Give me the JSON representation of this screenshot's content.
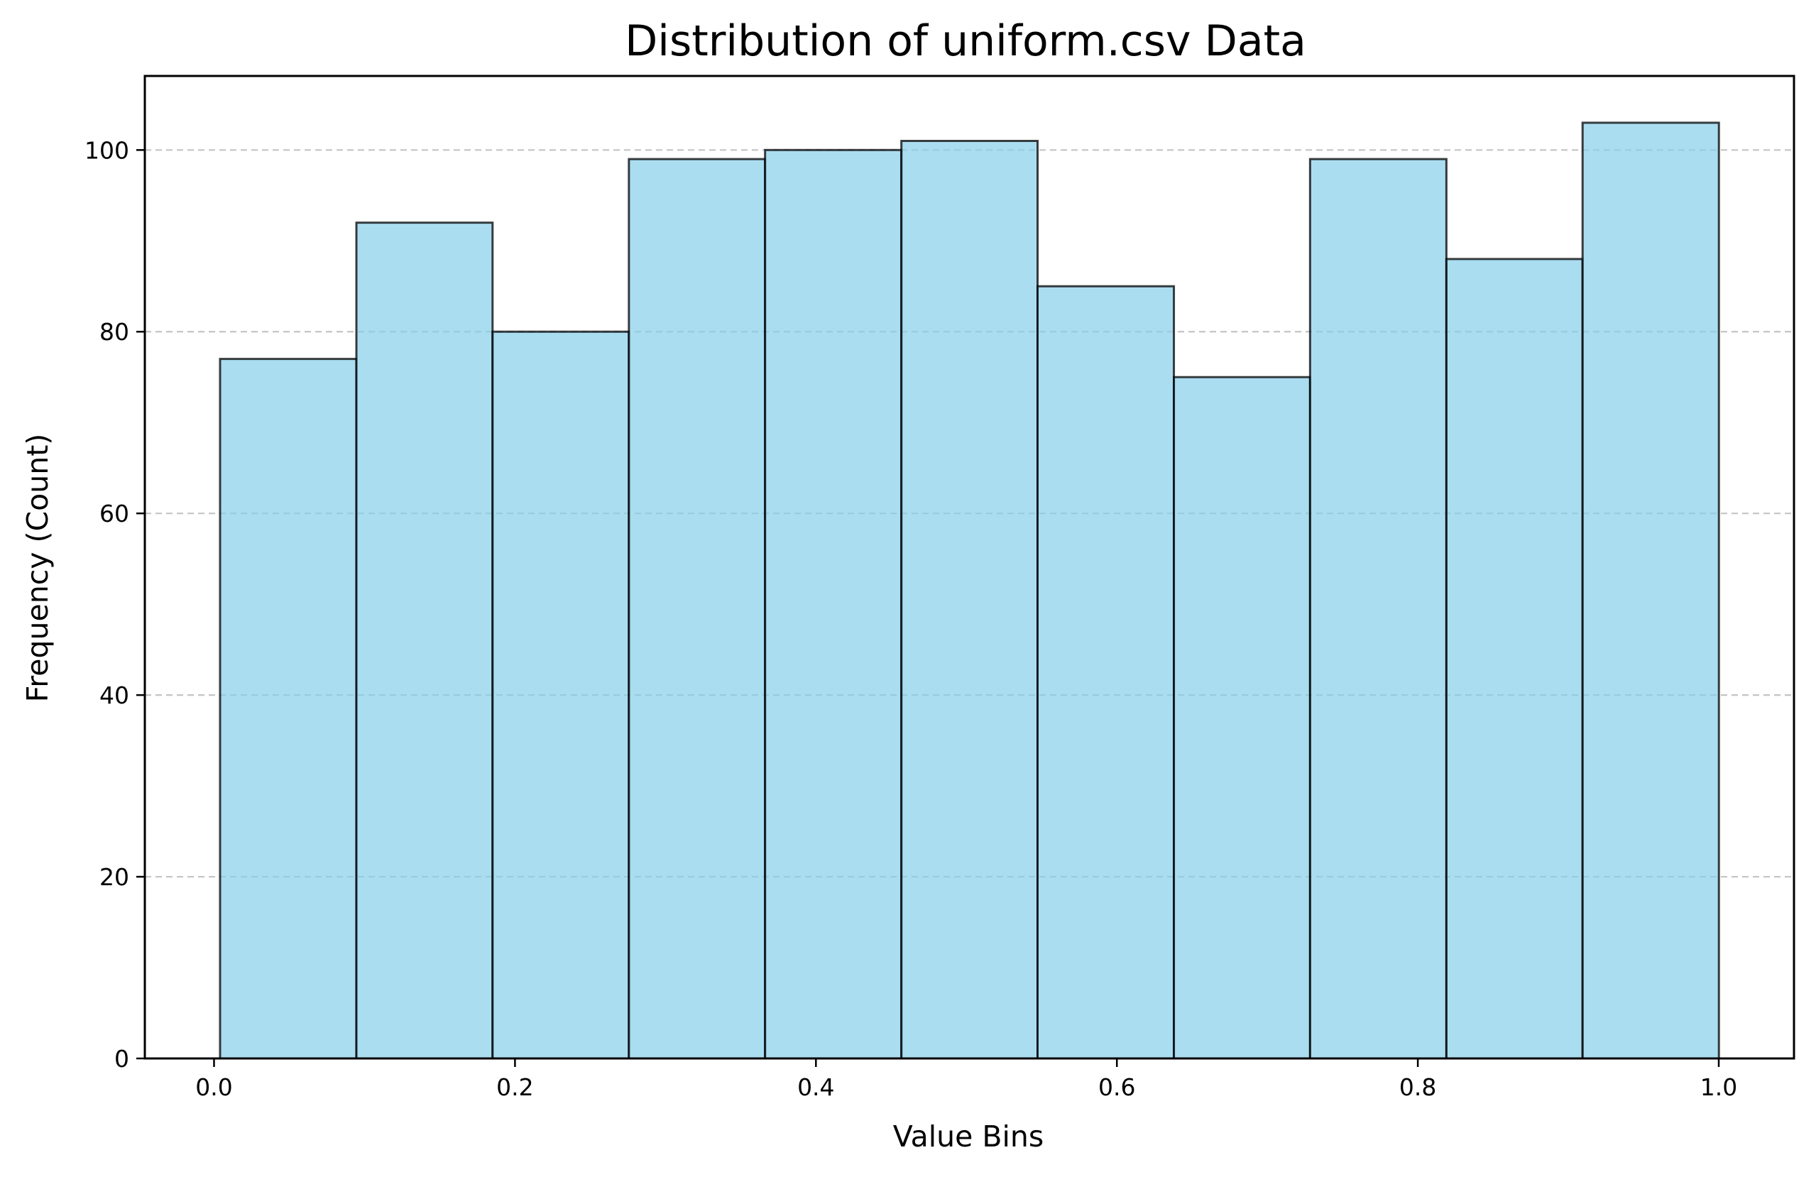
{
  "chart_data": {
    "type": "bar",
    "title": "Distribution of uniform.csv Data",
    "xlabel": "Value Bins",
    "ylabel": "Frequency (Count)",
    "bin_edges": [
      0.004,
      0.0946,
      0.1851,
      0.2757,
      0.3662,
      0.4568,
      0.5473,
      0.6379,
      0.7284,
      0.819,
      0.9095,
      1.0001
    ],
    "values": [
      77,
      92,
      80,
      99,
      100,
      101,
      85,
      75,
      99,
      88,
      103
    ],
    "xlim": [
      -0.046,
      1.05
    ],
    "ylim": [
      0,
      108.15
    ],
    "xticks": [
      0.0,
      0.2,
      0.4,
      0.6,
      0.8,
      1.0
    ],
    "xtick_labels": [
      "0.0",
      "0.2",
      "0.4",
      "0.6",
      "0.8",
      "1.0"
    ],
    "yticks": [
      0,
      20,
      40,
      60,
      80,
      100
    ],
    "ytick_labels": [
      "0",
      "20",
      "40",
      "60",
      "80",
      "100"
    ],
    "grid": {
      "y": true,
      "x": false,
      "style": "dashed"
    },
    "legend": "none",
    "colors": {
      "bar_fill": "#87CEEB",
      "bar_opacity": 0.7,
      "bar_edge": "#000000",
      "grid": "#b0b0b0"
    }
  }
}
